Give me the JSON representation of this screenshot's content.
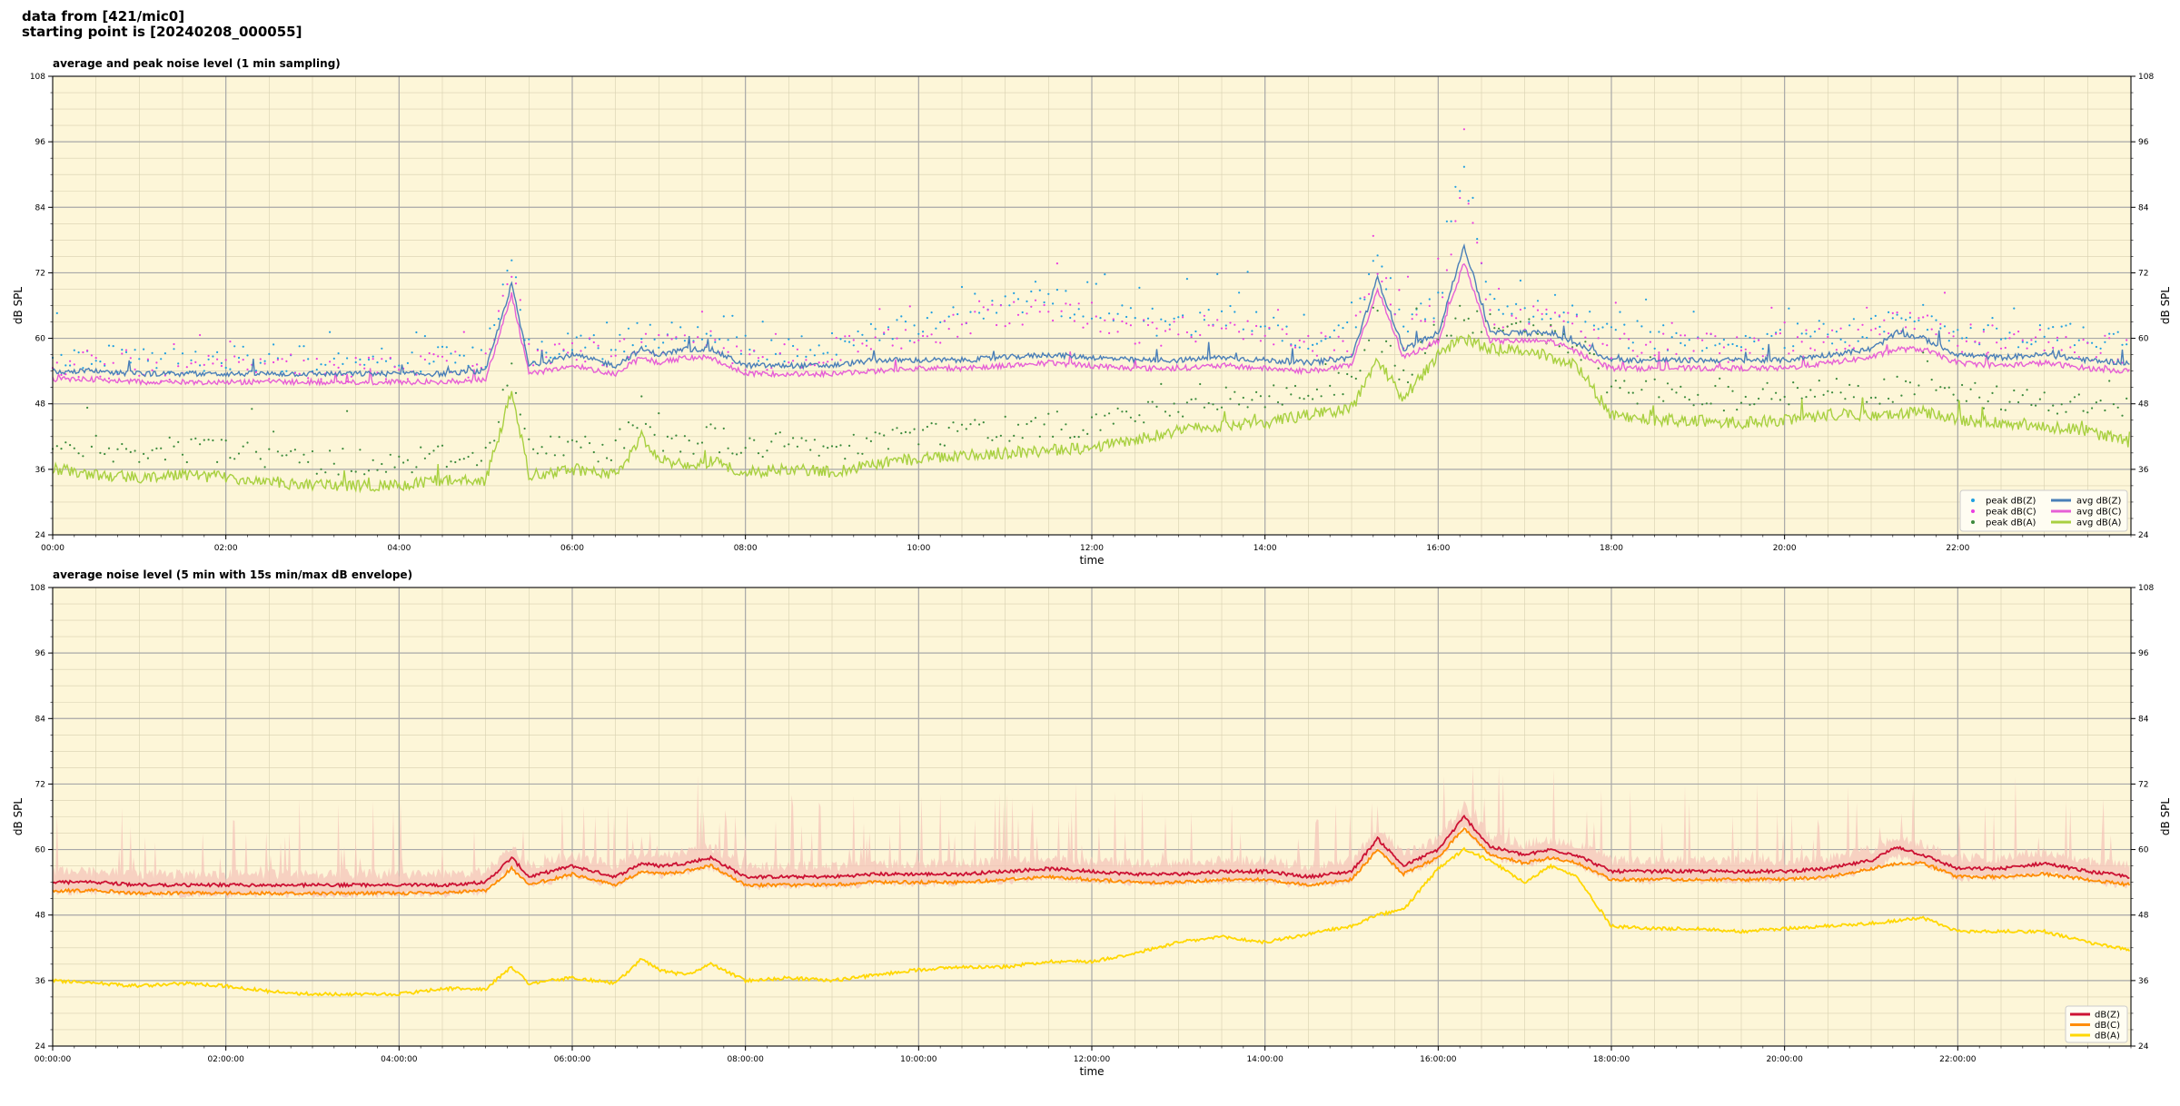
{
  "header": {
    "line1": "data from [421/mic0]",
    "line2": "starting point is [20240208_000055]"
  },
  "colors": {
    "panel_bg": "#fdf6d8",
    "peak_z": "#1f9fe0",
    "peak_c": "#ea3ee0",
    "peak_a": "#3c8a3c",
    "avg_z": "#4a7fb8",
    "avg_c": "#e65fd6",
    "avg_a": "#a8d040",
    "dbz": "#cc1133",
    "dbc": "#ff8c00",
    "dba": "#ffd700",
    "envelope": "#f4c2b8"
  },
  "chart_data": [
    {
      "type": "line",
      "title": "average and peak noise level (1 min sampling)",
      "xlabel": "time",
      "ylabel": "dB SPL",
      "xlim": [
        "00:00",
        "24:00"
      ],
      "ylim": [
        24,
        108
      ],
      "x_ticks": [
        "00:00",
        "02:00",
        "04:00",
        "06:00",
        "08:00",
        "10:00",
        "12:00",
        "14:00",
        "16:00",
        "18:00",
        "20:00",
        "22:00"
      ],
      "y_ticks": [
        24,
        36,
        48,
        60,
        72,
        84,
        96,
        108
      ],
      "grid": true,
      "legend_position": "lower-right",
      "legend": [
        "peak dB(Z)",
        "peak dB(C)",
        "peak dB(A)",
        "avg dB(Z)",
        "avg dB(C)",
        "avg dB(A)"
      ],
      "x_hours": [
        0,
        0.5,
        1,
        1.5,
        2,
        2.5,
        3,
        3.5,
        4,
        4.5,
        5,
        5.3,
        5.5,
        6,
        6.5,
        6.8,
        7,
        7.3,
        7.6,
        8,
        8.5,
        9,
        9.5,
        10,
        10.5,
        11,
        11.5,
        12,
        12.5,
        13,
        13.5,
        14,
        14.5,
        15,
        15.3,
        15.6,
        16,
        16.3,
        16.6,
        17,
        17.3,
        17.6,
        18,
        18.5,
        19,
        19.5,
        20,
        20.5,
        21,
        21.3,
        21.6,
        22,
        22.5,
        23,
        23.5,
        24
      ],
      "series": [
        {
          "name": "avg dB(Z)",
          "values": [
            54,
            54,
            53.5,
            53.5,
            53.5,
            53.5,
            53.5,
            53.5,
            53.5,
            53.5,
            54,
            70,
            55,
            57,
            55,
            58,
            57,
            58,
            58,
            55,
            55,
            55,
            56,
            56,
            56,
            56.5,
            57,
            56.5,
            56,
            56,
            56.5,
            56,
            55.5,
            56.5,
            71,
            58,
            61,
            77,
            61,
            61,
            61,
            59,
            56,
            56,
            56,
            56,
            56,
            57,
            58,
            61,
            60,
            57,
            56.5,
            57,
            56,
            55.5
          ]
        },
        {
          "name": "avg dB(C)",
          "values": [
            52.5,
            52.5,
            52,
            52,
            52,
            52,
            52,
            52,
            52,
            52,
            52.5,
            68,
            53.5,
            55,
            53.5,
            56.5,
            55.5,
            56.5,
            56.5,
            53.5,
            53.5,
            53.5,
            54,
            54.5,
            54.5,
            55,
            55.5,
            55,
            54.5,
            54.5,
            55,
            54.5,
            54,
            55,
            69,
            56.5,
            59.5,
            74,
            59.5,
            59.5,
            59.5,
            57.5,
            54.5,
            54.5,
            54.5,
            54.5,
            54.5,
            55.5,
            56.5,
            58,
            58,
            55.5,
            55,
            55.5,
            54.5,
            54
          ]
        },
        {
          "name": "avg dB(A)",
          "values": [
            36,
            35,
            34.5,
            35,
            34.5,
            33.5,
            33,
            33,
            33,
            34,
            34,
            50,
            35,
            36,
            35,
            42,
            38,
            36.5,
            37.5,
            35.5,
            36,
            35.5,
            37,
            38,
            38.5,
            39,
            39.5,
            40,
            41.5,
            43,
            44,
            44.5,
            46,
            47,
            56,
            49,
            57,
            60,
            58,
            58,
            56.5,
            55,
            46,
            45,
            45,
            44.5,
            45,
            46,
            46,
            46,
            46.5,
            45,
            44.5,
            44,
            43,
            41
          ]
        },
        {
          "name": "peak dB(Z)",
          "values": [
            57,
            56.5,
            56,
            56,
            56,
            56.5,
            56,
            56,
            56,
            56.5,
            57,
            74,
            58,
            59.5,
            58,
            61,
            60,
            61,
            61,
            58,
            58,
            59,
            61,
            62,
            64,
            66,
            67,
            65,
            63,
            62,
            64,
            62,
            60,
            61,
            76,
            62,
            66,
            92,
            66,
            65,
            66,
            64,
            60,
            60,
            60,
            59.5,
            60,
            61,
            62,
            64,
            64,
            61,
            60,
            61,
            60,
            59
          ]
        },
        {
          "name": "peak dB(C)",
          "values": [
            55.5,
            55,
            54.5,
            54.5,
            54.5,
            55,
            54.5,
            54.5,
            54.5,
            55,
            55.5,
            72,
            56.5,
            58,
            56.5,
            59.5,
            58.5,
            59.5,
            59.5,
            56.5,
            56.5,
            57.5,
            59.5,
            60.5,
            62.5,
            64.5,
            65.5,
            63.5,
            61.5,
            60.5,
            62.5,
            60.5,
            58.5,
            59.5,
            74,
            60.5,
            64.5,
            89,
            64.5,
            63.5,
            64.5,
            62.5,
            58.5,
            58.5,
            58.5,
            58,
            58.5,
            59.5,
            60.5,
            62.5,
            62.5,
            59.5,
            58.5,
            59.5,
            58.5,
            57.5
          ]
        },
        {
          "name": "peak dB(A)",
          "values": [
            41,
            40,
            39,
            39.5,
            39,
            38,
            37.5,
            37.5,
            37.5,
            38.5,
            38.5,
            54,
            39.5,
            40.5,
            39.5,
            46,
            42,
            41,
            42,
            40,
            40.5,
            40,
            41.5,
            42.5,
            43,
            43.5,
            44,
            44.5,
            46,
            47.5,
            48.5,
            49,
            50.5,
            51.5,
            60,
            53.5,
            61,
            64,
            62,
            62,
            60.5,
            59,
            50.5,
            49.5,
            49.5,
            49,
            49.5,
            50.5,
            50.5,
            50.5,
            51,
            49.5,
            49,
            48.5,
            47.5,
            45.5
          ]
        }
      ]
    },
    {
      "type": "line",
      "title": "average noise level (5 min with 15s min/max dB envelope)",
      "xlabel": "time",
      "ylabel": "dB SPL",
      "xlim": [
        "00:00:00",
        "24:00:00"
      ],
      "ylim": [
        24,
        108
      ],
      "x_ticks": [
        "00:00:00",
        "02:00:00",
        "04:00:00",
        "06:00:00",
        "08:00:00",
        "10:00:00",
        "12:00:00",
        "14:00:00",
        "16:00:00",
        "18:00:00",
        "20:00:00",
        "22:00:00"
      ],
      "y_ticks": [
        24,
        36,
        48,
        60,
        72,
        84,
        96,
        108
      ],
      "grid": true,
      "legend_position": "lower-right",
      "legend": [
        "dB(Z)",
        "dB(C)",
        "dB(A)"
      ],
      "x_hours": [
        0,
        0.5,
        1,
        1.5,
        2,
        2.5,
        3,
        3.5,
        4,
        4.5,
        5,
        5.3,
        5.5,
        6,
        6.5,
        6.8,
        7,
        7.3,
        7.6,
        8,
        8.5,
        9,
        9.5,
        10,
        10.5,
        11,
        11.5,
        12,
        12.5,
        13,
        13.5,
        14,
        14.5,
        15,
        15.3,
        15.6,
        16,
        16.3,
        16.6,
        17,
        17.3,
        17.6,
        18,
        18.5,
        19,
        19.5,
        20,
        20.5,
        21,
        21.3,
        21.6,
        22,
        22.5,
        23,
        23.5,
        24
      ],
      "series": [
        {
          "name": "dB(Z)",
          "values": [
            54,
            54,
            53.5,
            53.5,
            53.5,
            53.5,
            53.5,
            53.5,
            53.5,
            53.5,
            54,
            58.5,
            55,
            57,
            55,
            57.5,
            57,
            57.5,
            58.5,
            55,
            55,
            55,
            55.5,
            55.5,
            55.5,
            56,
            56.5,
            56,
            55.5,
            55.5,
            56,
            56,
            55,
            56,
            62,
            57,
            60,
            66,
            60.5,
            59,
            60,
            59,
            56,
            56,
            56,
            56,
            56,
            56.5,
            58,
            60.5,
            59,
            56.5,
            56.5,
            57.5,
            56,
            55
          ]
        },
        {
          "name": "dB(C)",
          "values": [
            52.5,
            52.5,
            52,
            52,
            52,
            52,
            52,
            52,
            52,
            52,
            52.5,
            56.5,
            53.5,
            55.5,
            53.5,
            56,
            55.5,
            56,
            57,
            53.5,
            53.5,
            53.5,
            54,
            54,
            54,
            54.5,
            55,
            54.5,
            54,
            54,
            54.5,
            54.5,
            53.5,
            54.5,
            60,
            55.5,
            58.5,
            64,
            59,
            57.5,
            58.5,
            57.5,
            54.5,
            54.5,
            54.5,
            54.5,
            54.5,
            55,
            56.5,
            57.5,
            57.5,
            55,
            55,
            55.5,
            54.5,
            53.5
          ]
        },
        {
          "name": "dB(A)",
          "values": [
            36,
            35.5,
            35,
            35.5,
            35,
            34,
            33.5,
            33.5,
            33.5,
            34.5,
            34.5,
            38.5,
            35.5,
            36.5,
            35.5,
            40,
            38,
            37,
            39,
            36,
            36.5,
            36,
            37,
            38,
            38.5,
            38.5,
            39.5,
            39.5,
            41,
            43,
            44,
            43,
            44.5,
            46,
            48,
            49,
            56.5,
            60,
            58,
            54,
            57,
            55,
            46,
            45.5,
            45.5,
            45,
            45.5,
            46,
            46.5,
            47,
            47.5,
            45,
            45,
            45,
            43,
            41.5
          ]
        }
      ]
    }
  ]
}
